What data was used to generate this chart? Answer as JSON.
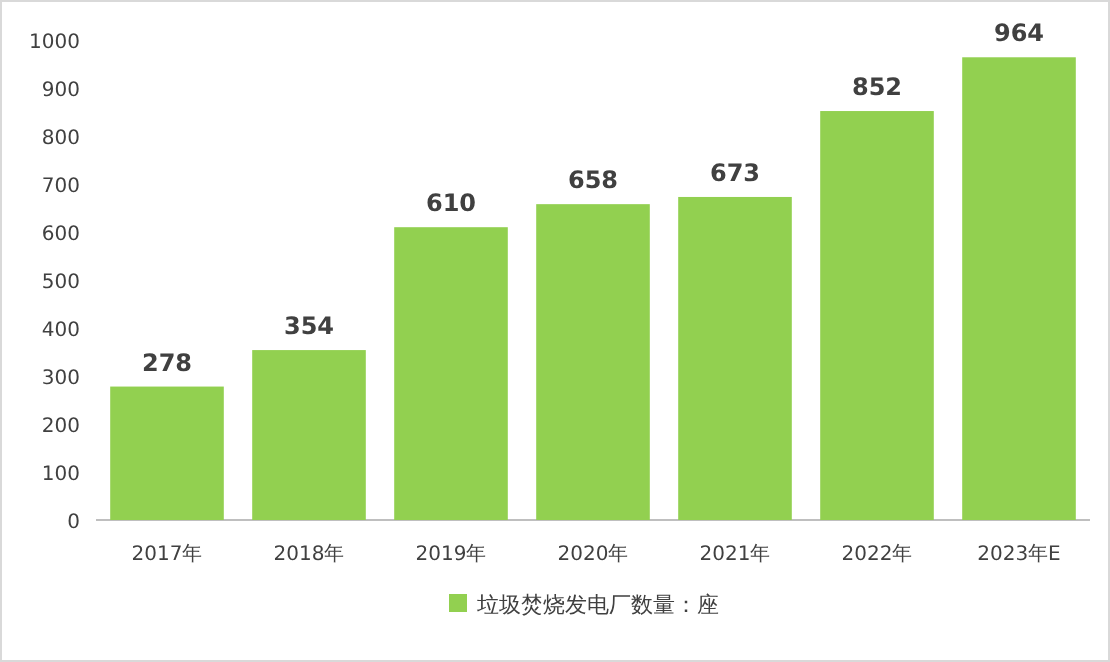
{
  "chart_data": {
    "type": "bar",
    "categories": [
      "2017年",
      "2018年",
      "2019年",
      "2020年",
      "2021年",
      "2022年",
      "2023年E"
    ],
    "series": [
      {
        "name": "垃圾焚烧发电厂数量：座",
        "color": "#92d050",
        "values": [
          278,
          354,
          610,
          658,
          673,
          852,
          964
        ]
      }
    ],
    "ylim": [
      0,
      1000
    ],
    "yticks": [
      0,
      100,
      200,
      300,
      400,
      500,
      600,
      700,
      800,
      900,
      1000
    ],
    "data_labels": true,
    "legend": "bottom"
  }
}
